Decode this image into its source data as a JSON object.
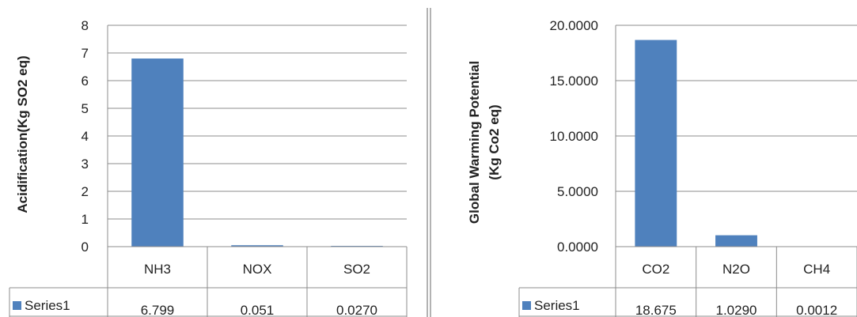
{
  "chart_data": [
    {
      "type": "bar",
      "title": "",
      "xlabel": "",
      "ylabel": "Acidification(Kg SO2 eq)",
      "ylim": [
        0,
        8
      ],
      "yticks": [
        "0",
        "1",
        "2",
        "3",
        "4",
        "5",
        "6",
        "7",
        "8"
      ],
      "grid": true,
      "categories": [
        "NH3",
        "NOX",
        "SO2"
      ],
      "series": [
        {
          "name": "Series1",
          "values": [
            6.799,
            0.051,
            0.027
          ],
          "labels": [
            "6.799",
            "0.051",
            "0.0270"
          ],
          "color": "#4f81bd"
        }
      ],
      "legend": "data-table-left"
    },
    {
      "type": "bar",
      "title": "",
      "xlabel": "",
      "ylabel_lines": [
        "Global Warming Potential",
        "(Kg Co2 eq)"
      ],
      "ylim": [
        0,
        20
      ],
      "yticks": [
        "0.0000",
        "5.0000",
        "10.0000",
        "15.0000",
        "20.0000"
      ],
      "grid": true,
      "categories": [
        "CO2",
        "N2O",
        "CH4"
      ],
      "series": [
        {
          "name": "Series1",
          "values": [
            18.675,
            1.029,
            0.0012
          ],
          "labels": [
            "18.675",
            "1.0290",
            "0.0012"
          ],
          "color": "#4f81bd"
        }
      ],
      "legend": "data-table-left"
    }
  ]
}
